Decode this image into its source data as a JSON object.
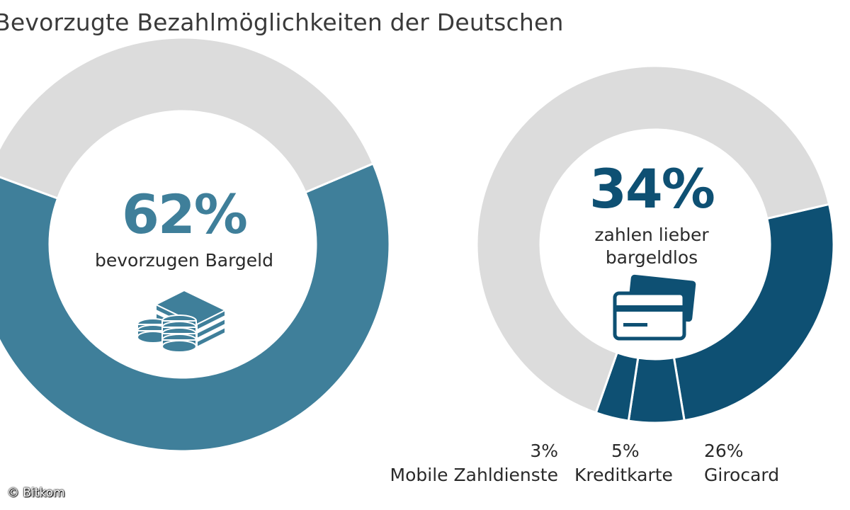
{
  "title": "Bevorzugte Bezahlmöglichkeiten der Deutschen",
  "copyright": "© Bitkom",
  "colors": {
    "cash_teal": "#3f7f9a",
    "cashless_navy": "#0e5073",
    "remainder_gray": "#dcdcdc",
    "background": "#ffffff"
  },
  "left": {
    "percent_text": "62%",
    "caption": "bevorzugen Bargeld",
    "icon": "money-stacks-coins-icon"
  },
  "right": {
    "percent_text": "34%",
    "caption_line1": "zahlen lieber",
    "caption_line2": "bargeldlos",
    "icon": "credit-cards-icon",
    "segments": [
      {
        "percent": "3%",
        "label": "Mobile Zahldienste"
      },
      {
        "percent": "5%",
        "label": "Kreditkarte"
      },
      {
        "percent": "26%",
        "label": "Girocard"
      }
    ]
  },
  "chart_data": [
    {
      "type": "pie",
      "title": "Bevorzugte Bezahlmöglichkeiten der Deutschen",
      "categories": [
        "bevorzugen Bargeld",
        ""
      ],
      "values": [
        62,
        38
      ],
      "colors": [
        "#3f7f9a",
        "#dcdcdc"
      ]
    },
    {
      "type": "pie",
      "categories": [
        "Girocard",
        "Kreditkarte",
        "Mobile Zahldienste",
        ""
      ],
      "values": [
        26,
        5,
        3,
        66
      ],
      "colors": [
        "#0e5073",
        "#0e5073",
        "#0e5073",
        "#dcdcdc"
      ]
    }
  ]
}
